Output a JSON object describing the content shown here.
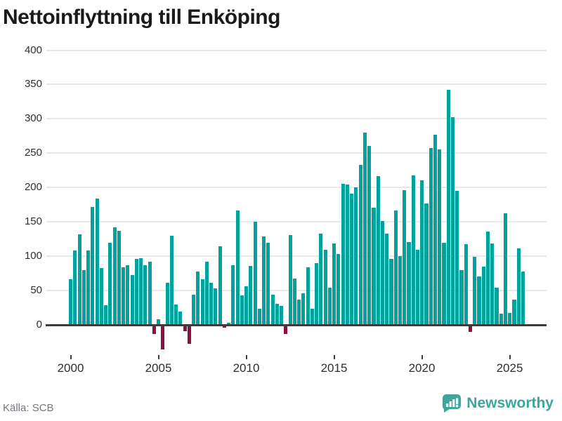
{
  "title": "Nettoinflyttning till Enköping",
  "source": "Källa: SCB",
  "logo": {
    "text": "Newsworthy",
    "icon": "newsworthy-speech-bubble-chart-icon"
  },
  "colors": {
    "positive_bar": "#00a39c",
    "negative_bar": "#8e1043",
    "gridline": "#e8e8e8",
    "axis_line": "#3d3d3d",
    "axis_label": "#2f2f2f",
    "title_text": "#1a1a1a",
    "source_text": "#73787e",
    "logo_teal": "#3fa59c"
  },
  "chart_data": {
    "type": "bar",
    "title": "Nettoinflyttning till Enköping",
    "frequency": "quarterly",
    "start_period": "2000-Q1",
    "end_period": "2025-Q4",
    "xlabel": "",
    "ylabel": "",
    "grid": "horizontal",
    "legend": "none",
    "ylim": [
      -50,
      400
    ],
    "y_ticks": [
      0,
      50,
      100,
      150,
      200,
      250,
      300,
      350,
      400
    ],
    "x_tick_labels": [
      "2000",
      "2005",
      "2010",
      "2015",
      "2020",
      "2025"
    ],
    "values": [
      66,
      108,
      132,
      80,
      108,
      172,
      184,
      83,
      29,
      120,
      142,
      137,
      84,
      87,
      73,
      96,
      97,
      87,
      92,
      -13,
      8,
      -36,
      61,
      130,
      30,
      19,
      -9,
      -28,
      44,
      78,
      66,
      92,
      61,
      53,
      114,
      -4,
      3,
      87,
      167,
      43,
      56,
      86,
      150,
      24,
      129,
      120,
      44,
      31,
      28,
      -13,
      131,
      67,
      37,
      46,
      84,
      24,
      90,
      133,
      109,
      54,
      119,
      103,
      205,
      204,
      191,
      200,
      233,
      280,
      261,
      171,
      217,
      151,
      133,
      96,
      167,
      100,
      196,
      121,
      218,
      109,
      210,
      177,
      257,
      277,
      255,
      120,
      342,
      302,
      195,
      80,
      118,
      -10,
      99,
      70,
      85,
      136,
      119,
      54,
      16,
      162,
      17,
      37,
      111,
      78
    ]
  }
}
